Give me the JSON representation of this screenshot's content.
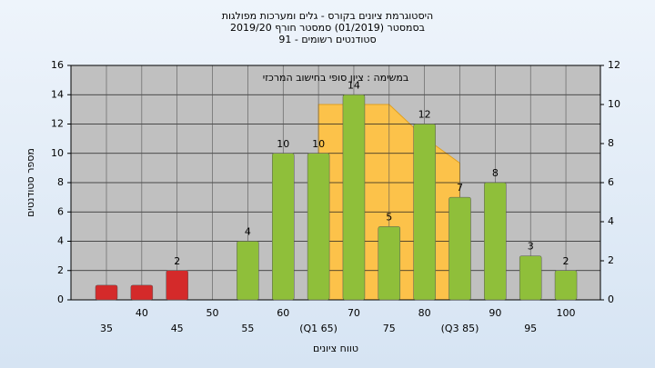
{
  "chart_data": {
    "type": "bar",
    "title": "היסטוגרמת ציונים בקורס - גלים ומערכות מפולגות",
    "subtitle": "בסמסטר  (01/2019)  סמסטר חורף 2019/20",
    "subtitle2": "סטודנטים רשומים - 91",
    "annotation": "במשימה : ציון סופי בחישוב המרכזי",
    "y_label": "מספר סטודנטים",
    "x_label": "טווח ציונים",
    "categories": [
      "35",
      "40",
      "45",
      "50",
      "55",
      "60",
      "(Q1 65)",
      "70",
      "75",
      "80",
      "(Q3 85)",
      "90",
      "95",
      "100"
    ],
    "values": [
      1,
      1,
      2,
      0,
      4,
      10,
      10,
      14,
      5,
      12,
      7,
      8,
      3,
      2
    ],
    "value_labels": [
      null,
      null,
      "2",
      null,
      "4",
      "10",
      "10",
      "14",
      "5",
      "12",
      "7",
      "8",
      "3",
      "2"
    ],
    "colors": [
      "#d42a2a",
      "#d42a2a",
      "#d42a2a",
      "#8fbf3a",
      "#8fbf3a",
      "#8fbf3a",
      "#8fbf3a",
      "#8fbf3a",
      "#8fbf3a",
      "#8fbf3a",
      "#8fbf3a",
      "#8fbf3a",
      "#8fbf3a",
      "#8fbf3a"
    ],
    "area": {
      "axis": "y2",
      "color": "#fcc24a",
      "values": [
        null,
        null,
        null,
        null,
        null,
        null,
        10,
        10,
        10,
        8.3,
        7,
        null,
        null,
        null
      ]
    },
    "ylim": [
      0,
      16
    ],
    "yticks": [
      0,
      2,
      4,
      6,
      8,
      10,
      12,
      14,
      16
    ],
    "y2lim": [
      0,
      12
    ],
    "y2ticks": [
      0,
      2,
      4,
      6,
      8,
      10,
      12
    ],
    "grid": true
  }
}
